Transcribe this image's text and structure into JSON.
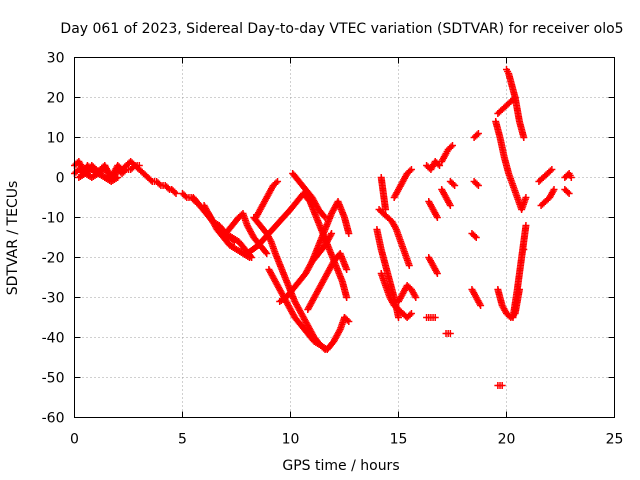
{
  "chart_data": {
    "type": "scatter",
    "title": "Day 061 of 2023, Sidereal Day-to-day VTEC variation (SDTVAR) for receiver olo5",
    "xlabel": "GPS time / hours",
    "ylabel": "SDTVAR / TECUs",
    "xlim": [
      0,
      25
    ],
    "ylim": [
      -60,
      30
    ],
    "xticks": [
      0,
      5,
      10,
      15,
      20,
      25
    ],
    "yticks": [
      -60,
      -50,
      -40,
      -30,
      -20,
      -10,
      0,
      10,
      20,
      30
    ],
    "xtick_labels": [
      "0",
      "5",
      "10",
      "15",
      "20",
      "25"
    ],
    "ytick_labels": [
      "-60",
      "-50",
      "-40",
      "-30",
      "-20",
      "-10",
      "0",
      "10",
      "20",
      "30"
    ],
    "grid": true,
    "marker": "+",
    "color": "#ff0000",
    "series": [
      {
        "name": "a1",
        "x": [
          0.0,
          0.2,
          0.4,
          0.6,
          0.8,
          1.0,
          1.2,
          1.4,
          1.6,
          1.8,
          2.0,
          2.2,
          2.4,
          2.6,
          2.8,
          3.0,
          3.2,
          3.4,
          3.6,
          3.8,
          4.0,
          4.2,
          4.4,
          4.5
        ],
        "y": [
          3,
          4,
          2,
          1,
          3,
          2,
          1,
          3,
          0,
          1,
          3,
          2,
          3,
          4,
          3,
          2,
          1,
          0,
          -1,
          -1,
          -2,
          -2,
          -3,
          -3
        ]
      },
      {
        "name": "a2",
        "x": [
          0.0,
          0.2,
          0.4,
          0.6,
          0.8,
          1.0,
          1.2,
          1.4,
          1.6,
          1.8,
          2.0,
          2.2,
          2.4,
          2.6,
          2.8,
          3.0
        ],
        "y": [
          1,
          2,
          1,
          3,
          2,
          1,
          2,
          3,
          1,
          0,
          2,
          1,
          2,
          2,
          3,
          3
        ]
      },
      {
        "name": "a3",
        "x": [
          0.2,
          0.5,
          0.8,
          1.1,
          1.4,
          1.7,
          2.0
        ],
        "y": [
          0,
          1,
          0,
          1,
          0,
          -1,
          0
        ]
      },
      {
        "name": "b1",
        "x": [
          4.5,
          4.7
        ],
        "y": [
          -3,
          -4
        ]
      },
      {
        "name": "b2",
        "x": [
          5.0,
          5.2,
          5.4,
          5.6,
          5.8,
          6.0,
          6.2,
          6.4,
          6.6,
          6.8,
          7.0,
          7.2,
          7.4
        ],
        "y": [
          -4,
          -5,
          -5,
          -6,
          -7,
          -8,
          -9,
          -11,
          -12,
          -13,
          -14,
          -15,
          -16
        ]
      },
      {
        "name": "b3",
        "x": [
          5.5,
          5.8,
          6.1,
          6.4,
          6.7,
          7.0,
          7.3,
          7.6,
          7.9,
          8.2
        ],
        "y": [
          -5,
          -7,
          -9,
          -11,
          -12,
          -14,
          -15,
          -16,
          -18,
          -20
        ]
      },
      {
        "name": "b4",
        "x": [
          6.0,
          6.3,
          6.6,
          6.9,
          7.2,
          7.5,
          7.8,
          8.1
        ],
        "y": [
          -7,
          -10,
          -13,
          -15,
          -17,
          -18,
          -19,
          -20
        ]
      },
      {
        "name": "b5",
        "x": [
          7.0,
          7.3,
          7.6,
          7.8,
          8.0,
          8.3,
          8.6,
          8.9
        ],
        "y": [
          -14,
          -12,
          -10,
          -9,
          -12,
          -15,
          -17,
          -19
        ]
      },
      {
        "name": "c1",
        "x": [
          8.3,
          8.6,
          8.9,
          9.1,
          9.3,
          9.6,
          9.9,
          10.2,
          10.5,
          10.8,
          11.1,
          11.4,
          11.7,
          12.0,
          12.3,
          12.5
        ],
        "y": [
          -10,
          -12,
          -14,
          -16,
          -19,
          -23,
          -27,
          -31,
          -34,
          -37,
          -40,
          -42,
          -43,
          -41,
          -38,
          -35
        ]
      },
      {
        "name": "c2",
        "x": [
          8.4,
          8.6,
          8.8,
          9.0,
          9.2,
          9.4
        ],
        "y": [
          -10,
          -8,
          -6,
          -4,
          -2,
          -1
        ]
      },
      {
        "name": "c3",
        "x": [
          8.0,
          8.5,
          9.0,
          9.5,
          10.0,
          10.3,
          10.6,
          10.9,
          11.2,
          11.5,
          11.8,
          12.1,
          12.4,
          12.6
        ],
        "y": [
          -19,
          -17,
          -14,
          -11,
          -8,
          -6,
          -4,
          -6,
          -10,
          -14,
          -18,
          -22,
          -26,
          -30
        ]
      },
      {
        "name": "c4",
        "x": [
          9.0,
          9.3,
          9.6,
          9.9,
          10.2,
          10.5,
          10.8,
          11.1,
          11.4,
          11.6
        ],
        "y": [
          -23,
          -26,
          -29,
          -32,
          -35,
          -37,
          -39,
          -41,
          -42,
          -43
        ]
      },
      {
        "name": "c5",
        "x": [
          9.5,
          9.8,
          10.1,
          10.4,
          10.7,
          11.0,
          11.3,
          11.6,
          11.9
        ],
        "y": [
          -31,
          -30,
          -28,
          -26,
          -24,
          -21,
          -19,
          -17,
          -14
        ]
      },
      {
        "name": "c6",
        "x": [
          10.1,
          10.4,
          10.7,
          11.0,
          11.3,
          11.6
        ],
        "y": [
          1,
          -1,
          -3,
          -5,
          -8,
          -10
        ]
      },
      {
        "name": "c7",
        "x": [
          11.0,
          11.3,
          11.6,
          11.9,
          12.2,
          12.5,
          12.7
        ],
        "y": [
          -21,
          -17,
          -13,
          -9,
          -6,
          -10,
          -14
        ]
      },
      {
        "name": "c8",
        "x": [
          10.8,
          11.1,
          11.4,
          11.7,
          12.0,
          12.3,
          12.6
        ],
        "y": [
          -33,
          -30,
          -27,
          -24,
          -21,
          -19,
          -23
        ]
      },
      {
        "name": "d1",
        "x": [
          12.5,
          12.7
        ],
        "y": [
          -35,
          -36
        ]
      },
      {
        "name": "e1",
        "x": [
          14.0,
          14.2,
          14.4,
          14.6,
          14.8,
          15.0
        ],
        "y": [
          -13,
          -18,
          -22,
          -26,
          -30,
          -35
        ]
      },
      {
        "name": "e2",
        "x": [
          14.1,
          14.3,
          14.5,
          14.7,
          14.9,
          15.1,
          15.3,
          15.5
        ],
        "y": [
          -8,
          -9,
          -10,
          -11,
          -13,
          -16,
          -19,
          -22
        ]
      },
      {
        "name": "e3",
        "x": [
          14.2,
          14.4,
          14.6,
          14.8,
          15.0,
          15.2,
          15.4,
          15.6
        ],
        "y": [
          -24,
          -27,
          -30,
          -32,
          -33,
          -34,
          -35,
          -34
        ]
      },
      {
        "name": "e4",
        "x": [
          15.0,
          15.2,
          15.4,
          15.6,
          15.8
        ],
        "y": [
          -31,
          -29,
          -27,
          -28,
          -30
        ]
      },
      {
        "name": "e5",
        "x": [
          14.8,
          15.0,
          15.2,
          15.4,
          15.6
        ],
        "y": [
          -5,
          -3,
          -1,
          1,
          2
        ]
      },
      {
        "name": "e6",
        "x": [
          14.2,
          14.4
        ],
        "y": [
          0,
          -8
        ]
      },
      {
        "name": "f1",
        "x": [
          16.3,
          16.5,
          16.7,
          16.9
        ],
        "y": [
          3,
          2,
          4,
          3
        ]
      },
      {
        "name": "f2",
        "x": [
          16.4,
          16.6,
          16.8
        ],
        "y": [
          -6,
          -8,
          -10
        ]
      },
      {
        "name": "f3",
        "x": [
          16.4,
          16.6,
          16.8
        ],
        "y": [
          -20,
          -22,
          -24
        ]
      },
      {
        "name": "f4",
        "x": [
          16.3,
          16.5,
          16.7
        ],
        "y": [
          -35,
          -35,
          -35
        ]
      },
      {
        "name": "f5",
        "x": [
          17.0,
          17.2,
          17.3,
          17.5
        ],
        "y": [
          4,
          6,
          7,
          8
        ]
      },
      {
        "name": "f6",
        "x": [
          17.0,
          17.2,
          17.4
        ],
        "y": [
          -3,
          -5,
          -7
        ]
      },
      {
        "name": "f7",
        "x": [
          17.4,
          17.6
        ],
        "y": [
          -1,
          -2
        ]
      },
      {
        "name": "f8",
        "x": [
          17.2,
          17.4
        ],
        "y": [
          -39,
          -39
        ]
      },
      {
        "name": "g1",
        "x": [
          18.5,
          18.7
        ],
        "y": [
          10,
          11
        ]
      },
      {
        "name": "g2",
        "x": [
          18.5,
          18.7
        ],
        "y": [
          -1,
          -2
        ]
      },
      {
        "name": "g3",
        "x": [
          18.4,
          18.6
        ],
        "y": [
          -14,
          -15
        ]
      },
      {
        "name": "g4",
        "x": [
          18.4,
          18.6,
          18.8
        ],
        "y": [
          -28,
          -30,
          -32
        ]
      },
      {
        "name": "h1",
        "x": [
          19.5,
          19.7,
          19.9,
          20.1,
          20.3,
          20.5,
          20.7,
          20.9
        ],
        "y": [
          14,
          10,
          5,
          1,
          -2,
          -5,
          -8,
          -5
        ]
      },
      {
        "name": "h2",
        "x": [
          19.6,
          19.8,
          20.0,
          20.2,
          20.4,
          20.6,
          20.8
        ],
        "y": [
          16,
          17,
          18,
          19,
          20,
          14,
          10
        ]
      },
      {
        "name": "h3",
        "x": [
          20.0,
          20.1,
          20.2,
          20.3,
          20.4
        ],
        "y": [
          27,
          26,
          24,
          22,
          20
        ]
      },
      {
        "name": "h4",
        "x": [
          19.6,
          19.8,
          20.0,
          20.2,
          20.4,
          20.6,
          20.8
        ],
        "y": [
          -28,
          -32,
          -34,
          -35,
          -34,
          -28,
          -18
        ]
      },
      {
        "name": "h5",
        "x": [
          20.3,
          20.5,
          20.7,
          20.9
        ],
        "y": [
          -35,
          -28,
          -20,
          -12
        ]
      },
      {
        "name": "h6",
        "x": [
          19.6,
          19.8
        ],
        "y": [
          -52,
          -52
        ]
      },
      {
        "name": "i1",
        "x": [
          21.5,
          21.7,
          21.9,
          22.1
        ],
        "y": [
          -1,
          0,
          1,
          2
        ]
      },
      {
        "name": "i2",
        "x": [
          21.6,
          21.8,
          22.0,
          22.2
        ],
        "y": [
          -7,
          -6,
          -5,
          -3
        ]
      },
      {
        "name": "i3",
        "x": [
          22.7,
          22.9,
          23.0
        ],
        "y": [
          0,
          1,
          0
        ]
      },
      {
        "name": "i4",
        "x": [
          22.7,
          22.9
        ],
        "y": [
          -3,
          -4
        ]
      }
    ]
  }
}
